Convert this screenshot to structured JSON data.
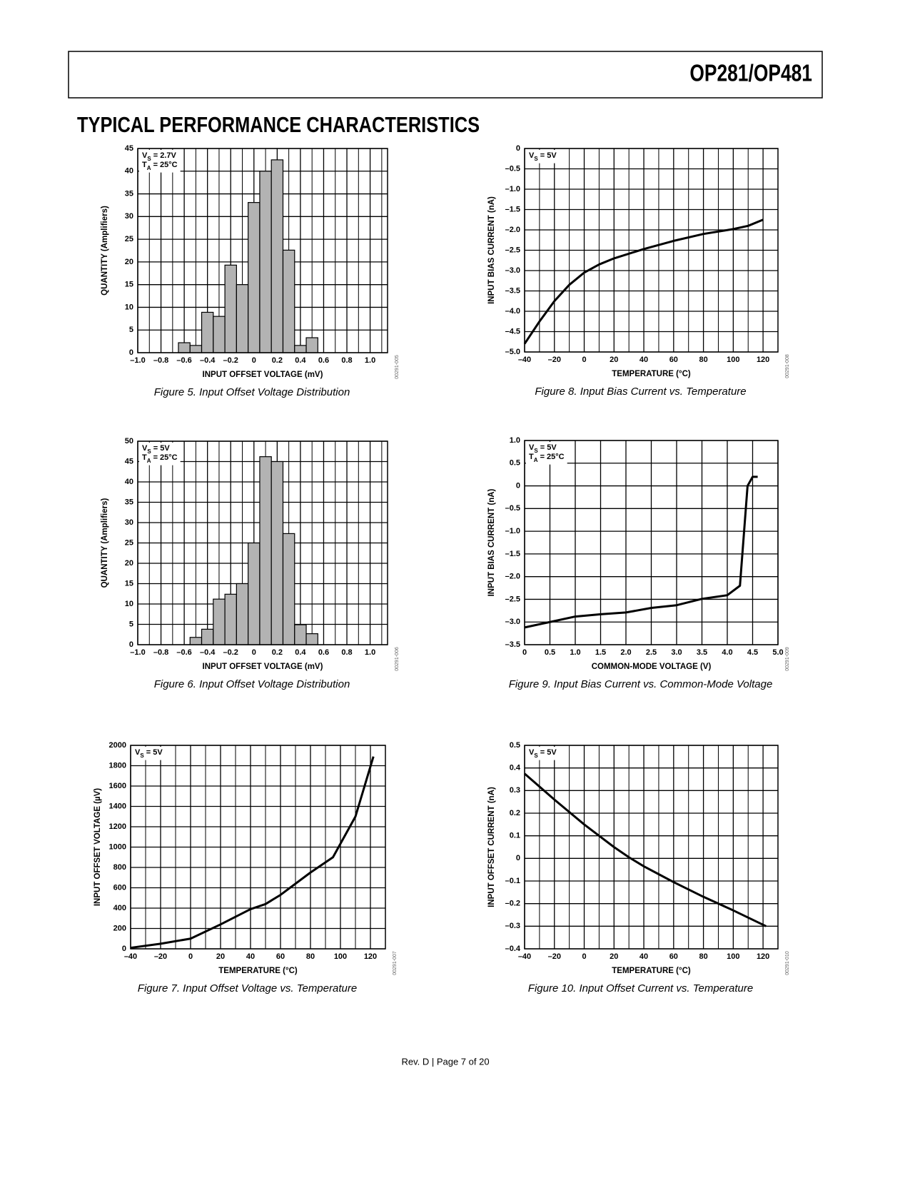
{
  "header": {
    "title": "OP281/OP481"
  },
  "section_title": "TYPICAL PERFORMANCE CHARACTERISTICS",
  "footer": "Rev. D | Page 7 of 20",
  "chart_data": [
    {
      "type": "histogram",
      "caption": "Figure 5. Input Offset Voltage Distribution",
      "figure_id": "00291-005",
      "xlabel": "INPUT OFFSET VOLTAGE (mV)",
      "ylabel": "QUANTITY (Amplifiers)",
      "grid": true,
      "annotations": [
        {
          "main": "V",
          "sub": "S",
          "rest": " = 2.7V"
        },
        {
          "main": "T",
          "sub": "A",
          "rest": " = 25°C"
        }
      ],
      "bins": [
        -0.65,
        -0.55,
        -0.45,
        -0.35,
        -0.25,
        -0.15,
        -0.05,
        0.05,
        0.15,
        0.25,
        0.35,
        0.45,
        0.55
      ],
      "values": [
        2.2,
        1.6,
        8.9,
        8,
        19.3,
        15,
        33.1,
        40,
        42.5,
        22.6,
        1.6,
        3.3
      ],
      "color": "#b3b3b3",
      "xlim": [
        -1,
        1.15
      ],
      "xticks": [
        {
          "value": -1,
          "label": "–1.0"
        },
        {
          "value": -0.8,
          "label": "–0.8"
        },
        {
          "value": -0.6,
          "label": "–0.6"
        },
        {
          "value": -0.4,
          "label": "–0.4"
        },
        {
          "value": -0.2,
          "label": "–0.2"
        },
        0,
        0.2,
        0.4,
        0.6,
        0.8,
        {
          "value": 1,
          "label": "1.0"
        }
      ],
      "ylim": [
        0,
        45
      ],
      "yticks": [
        0,
        5,
        10,
        15,
        20,
        25,
        30,
        35,
        40,
        45
      ]
    },
    {
      "type": "line",
      "caption": "Figure 8. Input Bias Current vs. Temperature",
      "figure_id": "00291-008",
      "xlabel": "TEMPERATURE (°C)",
      "ylabel": "INPUT BIAS CURRENT (nA)",
      "grid": true,
      "annotations": [
        {
          "main": "V",
          "sub": "S",
          "rest": " = 5V"
        }
      ],
      "x": [
        -40,
        -30,
        -20,
        -10,
        0,
        10,
        20,
        40,
        60,
        80,
        100,
        110,
        120
      ],
      "values": [
        -4.8,
        -4.25,
        -3.75,
        -3.35,
        -3.05,
        -2.85,
        -2.7,
        -2.47,
        -2.27,
        -2.1,
        -1.98,
        -1.9,
        -1.75
      ],
      "color": "#000000",
      "xlim": [
        -40,
        130
      ],
      "xticks": [
        {
          "value": -40,
          "label": "–40"
        },
        {
          "value": -20,
          "label": "–20"
        },
        0,
        20,
        40,
        60,
        80,
        100,
        120
      ],
      "ylim": [
        -5,
        0
      ],
      "yticks": [
        0,
        {
          "value": -0.5,
          "label": "–0.5"
        },
        {
          "value": -1,
          "label": "–1.0"
        },
        {
          "value": -1.5,
          "label": "–1.5"
        },
        {
          "value": -2,
          "label": "–2.0"
        },
        {
          "value": -2.5,
          "label": "–2.5"
        },
        {
          "value": -3,
          "label": "–3.0"
        },
        {
          "value": -3.5,
          "label": "–3.5"
        },
        {
          "value": -4,
          "label": "–4.0"
        },
        {
          "value": -4.5,
          "label": "–4.5"
        },
        {
          "value": -5,
          "label": "–5.0"
        }
      ]
    },
    {
      "type": "histogram",
      "caption": "Figure 6. Input Offset Voltage Distribution",
      "figure_id": "00291-006",
      "xlabel": "INPUT OFFSET VOLTAGE (mV)",
      "ylabel": "QUANTITY (Amplifiers)",
      "grid": true,
      "annotations": [
        {
          "main": "V",
          "sub": "S",
          "rest": " = 5V"
        },
        {
          "main": "T",
          "sub": "A",
          "rest": " = 25°C"
        }
      ],
      "bins": [
        -0.55,
        -0.45,
        -0.35,
        -0.25,
        -0.15,
        -0.05,
        0.05,
        0.15,
        0.25,
        0.35,
        0.45,
        0.55
      ],
      "values": [
        1.8,
        3.8,
        11.2,
        12.4,
        15,
        25,
        46.2,
        45,
        27.3,
        4.9,
        2.7
      ],
      "color": "#b3b3b3",
      "xlim": [
        -1,
        1.15
      ],
      "xticks": [
        {
          "value": -1,
          "label": "–1.0"
        },
        {
          "value": -0.8,
          "label": "–0.8"
        },
        {
          "value": -0.6,
          "label": "–0.6"
        },
        {
          "value": -0.4,
          "label": "–0.4"
        },
        {
          "value": -0.2,
          "label": "–0.2"
        },
        0,
        0.2,
        0.4,
        0.6,
        0.8,
        {
          "value": 1,
          "label": "1.0"
        }
      ],
      "ylim": [
        0,
        50
      ],
      "yticks": [
        0,
        5,
        10,
        15,
        20,
        25,
        30,
        35,
        40,
        45,
        50
      ]
    },
    {
      "type": "line",
      "caption": "Figure 9. Input Bias Current vs. Common-Mode Voltage",
      "figure_id": "00291-009",
      "xlabel": "COMMON-MODE VOLTAGE (V)",
      "ylabel": "INPUT BIAS CURRENT (nA)",
      "grid": true,
      "annotations": [
        {
          "main": "V",
          "sub": "S",
          "rest": " = 5V"
        },
        {
          "main": "T",
          "sub": "A",
          "rest": " = 25°C"
        }
      ],
      "x": [
        0,
        0.5,
        1,
        1.5,
        2,
        2.5,
        3,
        3.5,
        4,
        4.25,
        4.4,
        4.5,
        4.6
      ],
      "values": [
        -3.12,
        -3,
        -2.88,
        -2.83,
        -2.79,
        -2.69,
        -2.63,
        -2.49,
        -2.41,
        -2.2,
        0,
        0.2,
        0.2
      ],
      "color": "#000000",
      "xlim": [
        0,
        5
      ],
      "xticks": [
        0,
        0.5,
        {
          "value": 1,
          "label": "1.0"
        },
        1.5,
        {
          "value": 2,
          "label": "2.0"
        },
        2.5,
        {
          "value": 3,
          "label": "3.0"
        },
        3.5,
        {
          "value": 4,
          "label": "4.0"
        },
        4.5,
        {
          "value": 5,
          "label": "5.0"
        }
      ],
      "ylim": [
        -3.5,
        1
      ],
      "yticks": [
        {
          "value": 1,
          "label": "1.0"
        },
        0.5,
        0,
        {
          "value": -0.5,
          "label": "–0.5"
        },
        {
          "value": -1,
          "label": "–1.0"
        },
        {
          "value": -1.5,
          "label": "–1.5"
        },
        {
          "value": -2,
          "label": "–2.0"
        },
        {
          "value": -2.5,
          "label": "–2.5"
        },
        {
          "value": -3,
          "label": "–3.0"
        },
        {
          "value": -3.5,
          "label": "–3.5"
        }
      ]
    },
    {
      "type": "line",
      "caption": "Figure 7. Input Offset Voltage vs. Temperature",
      "figure_id": "00291-007",
      "xlabel": "TEMPERATURE (°C)",
      "ylabel": "INPUT OFFSET VOLTAGE (µV)",
      "grid": true,
      "annotations": [
        {
          "main": "V",
          "sub": "S",
          "rest": " = 5V"
        }
      ],
      "x": [
        -40,
        -20,
        0,
        20,
        40,
        50,
        60,
        80,
        95,
        110,
        122
      ],
      "values": [
        10,
        50,
        100,
        240,
        390,
        440,
        530,
        750,
        900,
        1300,
        1890
      ],
      "color": "#000000",
      "xlim": [
        -40,
        130
      ],
      "xticks": [
        {
          "value": -40,
          "label": "–40"
        },
        {
          "value": -20,
          "label": "–20"
        },
        0,
        20,
        40,
        60,
        80,
        100,
        120
      ],
      "ylim": [
        0,
        2000
      ],
      "yticks": [
        0,
        200,
        400,
        600,
        800,
        1000,
        1200,
        1400,
        1600,
        1800,
        2000
      ]
    },
    {
      "type": "line",
      "caption": "Figure 10. Input Offset Current vs. Temperature",
      "figure_id": "00291-010",
      "xlabel": "TEMPERATURE (°C)",
      "ylabel": "INPUT OFFSET CURRENT (nA)",
      "grid": true,
      "annotations": [
        {
          "main": "V",
          "sub": "S",
          "rest": " = 5V"
        }
      ],
      "x": [
        -40,
        -20,
        0,
        10,
        20,
        30,
        40,
        50,
        60,
        80,
        100,
        122
      ],
      "values": [
        0.375,
        0.26,
        0.15,
        0.1,
        0.05,
        0.005,
        -0.035,
        -0.07,
        -0.105,
        -0.17,
        -0.23,
        -0.3
      ],
      "color": "#000000",
      "xlim": [
        -40,
        130
      ],
      "xticks": [
        {
          "value": -40,
          "label": "–40"
        },
        {
          "value": -20,
          "label": "–20"
        },
        0,
        20,
        40,
        60,
        80,
        100,
        120
      ],
      "ylim": [
        -0.4,
        0.5
      ],
      "yticks": [
        0.5,
        0.4,
        0.3,
        0.2,
        0.1,
        0,
        {
          "value": -0.1,
          "label": "–0.1"
        },
        {
          "value": -0.2,
          "label": "–0.2"
        },
        {
          "value": -0.3,
          "label": "–0.3"
        },
        {
          "value": -0.4,
          "label": "–0.4"
        }
      ]
    }
  ]
}
